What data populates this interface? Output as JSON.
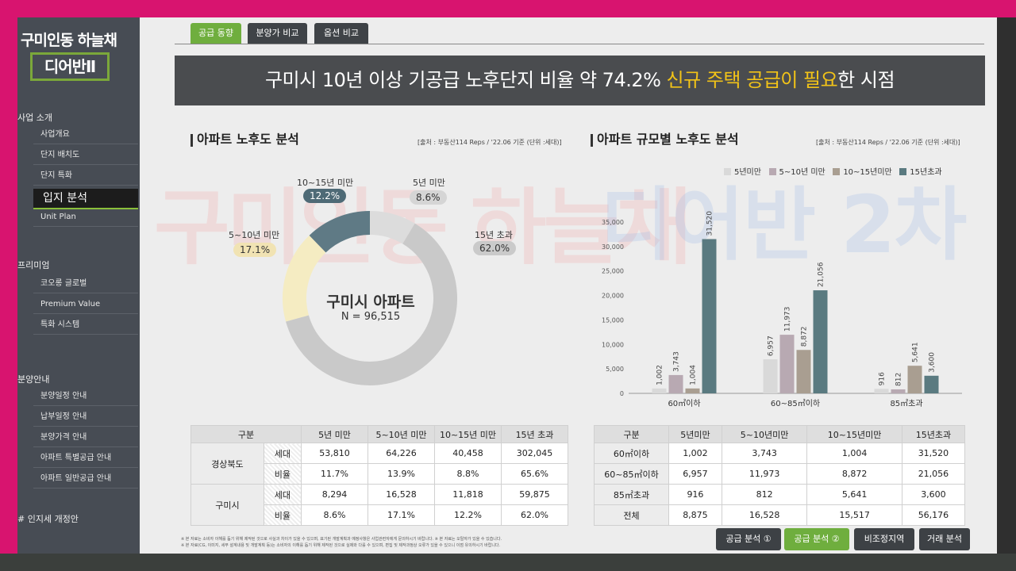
{
  "sidebar": {
    "brand_top": "구미인동 하늘채",
    "brand_box": "디어반Ⅱ",
    "sections": [
      {
        "title": "사업 소개"
      },
      {
        "title": "프리미엄"
      },
      {
        "title": "분양안내"
      },
      {
        "title": "# 인지세 개정안"
      }
    ],
    "intro_items": [
      "사업개요",
      "단지 배치도",
      "단지 특화",
      "입지 분석",
      "Unit Plan"
    ],
    "premium_items": [
      "코오롱 글로벌",
      "Premium Value",
      "특화 시스템"
    ],
    "sale_items": [
      "분양일정 안내",
      "납부일정 안내",
      "분양가격 안내",
      "아파트 특별공급 안내",
      "아파트 일반공급 안내"
    ]
  },
  "tabs": [
    "공급 동향",
    "분양가 비교",
    "옵션 비교"
  ],
  "headline": {
    "pre": "구미시 10년 이상 기공급 노후단지 비율 약 74.2% ",
    "highlight": "신규 주택 공급이 필요",
    "post": "한 시점"
  },
  "watermark": {
    "left": "구미인동 하늘채",
    "right": "디어반 2차"
  },
  "left_section": {
    "title": "아파트 노후도 분석",
    "source": "[출처 : 부동산114 Reps / '22.06 기준 (단위 :세대)]"
  },
  "right_section": {
    "title": "아파트 규모별 노후도 분석",
    "source": "[출처 : 부동산114 Reps / '22.06 기준 (단위 :세대)]"
  },
  "chart_data": [
    {
      "type": "pie",
      "title": "구미시 아파트",
      "subtitle": "N = 96,515",
      "categories": [
        "5년 미만",
        "5~10년 미만",
        "10~15년 미만",
        "15년 초과"
      ],
      "values": [
        8.6,
        17.1,
        12.2,
        62.0
      ],
      "labels": [
        "8.6%",
        "17.1%",
        "12.2%",
        "62.0%"
      ],
      "colors": [
        "#dcdcdc",
        "#f5ecc2",
        "#5f7a85",
        "#c9c9c9"
      ]
    },
    {
      "type": "bar",
      "categories": [
        "60㎡이하",
        "60~85㎡이하",
        "85㎡초과"
      ],
      "series": [
        {
          "name": "5년미만",
          "values": [
            1002,
            6957,
            916
          ],
          "color": "#d9d9d9"
        },
        {
          "name": "5~10년 미만",
          "values": [
            3743,
            11973,
            812
          ],
          "color": "#b8a9b2"
        },
        {
          "name": "10~15년미만",
          "values": [
            1004,
            8872,
            5641
          ],
          "color": "#a99e91"
        },
        {
          "name": "15년초과",
          "values": [
            31520,
            21056,
            3600
          ],
          "color": "#5a7a80"
        }
      ],
      "data_labels": [
        [
          "1,002",
          "6,957",
          "916"
        ],
        [
          "3,743",
          "11,973",
          "812"
        ],
        [
          "1,004",
          "8,872",
          "5,641"
        ],
        [
          "31,520",
          "21,056",
          "3,600"
        ]
      ],
      "ylim": [
        0,
        35000
      ],
      "yticks": [
        "0",
        "5,000",
        "10,000",
        "15,000",
        "20,000",
        "25,000",
        "30,000",
        "35,000"
      ],
      "ytick_values": [
        0,
        5000,
        10000,
        15000,
        20000,
        25000,
        30000,
        35000
      ],
      "grid": false,
      "legend": "top-right"
    }
  ],
  "left_table": {
    "headers": [
      "구분",
      "5년 미만",
      "5~10년 미만",
      "10~15년 미만",
      "15년 초과"
    ],
    "groups": [
      {
        "name": "경상북도",
        "rows": [
          {
            "label": "세대",
            "values": [
              "53,810",
              "64,226",
              "40,458",
              "302,045"
            ]
          },
          {
            "label": "비율",
            "values": [
              "11.7%",
              "13.9%",
              "8.8%",
              "65.6%"
            ]
          }
        ]
      },
      {
        "name": "구미시",
        "rows": [
          {
            "label": "세대",
            "values": [
              "8,294",
              "16,528",
              "11,818",
              "59,875"
            ]
          },
          {
            "label": "비율",
            "values": [
              "8.6%",
              "17.1%",
              "12.2%",
              "62.0%"
            ]
          }
        ]
      }
    ]
  },
  "right_table": {
    "headers": [
      "구분",
      "5년미만",
      "5~10년미만",
      "10~15년미만",
      "15년초과"
    ],
    "rows": [
      {
        "label": "60㎡이하",
        "values": [
          "1,002",
          "3,743",
          "1,004",
          "31,520"
        ]
      },
      {
        "label": "60~85㎡이하",
        "values": [
          "6,957",
          "11,973",
          "8,872",
          "21,056"
        ]
      },
      {
        "label": "85㎡초과",
        "values": [
          "916",
          "812",
          "5,641",
          "3,600"
        ]
      },
      {
        "label": "전체",
        "values": [
          "8,875",
          "16,528",
          "15,517",
          "56,176"
        ]
      }
    ]
  },
  "notes": [
    "※ 본 자료는 소비자 이해를 돕기 위해 제작된 것으로 사실과 차이가 있을 수 있으며, 표기된 개발계획과 예정사항은 사업관련자에게 문의하시기 바랍니다.   ※ 본 자료는 오탈자가 있을 수 있습니다.",
    "※ 본 자료(CG, 이미지, 세부 설계내용 및 개발계획 등)는 소비자의 이해를 돕기 위해 제작된 것으로 실제와 다를 수 있으며, 편집 및 제작과정상 오류가 있을 수 있으니 이점 유의하시기 바랍니다."
  ],
  "bottom_buttons": [
    "공급 분석 ①",
    "공급 분석 ②",
    "비조정지역",
    "거래 분석"
  ]
}
